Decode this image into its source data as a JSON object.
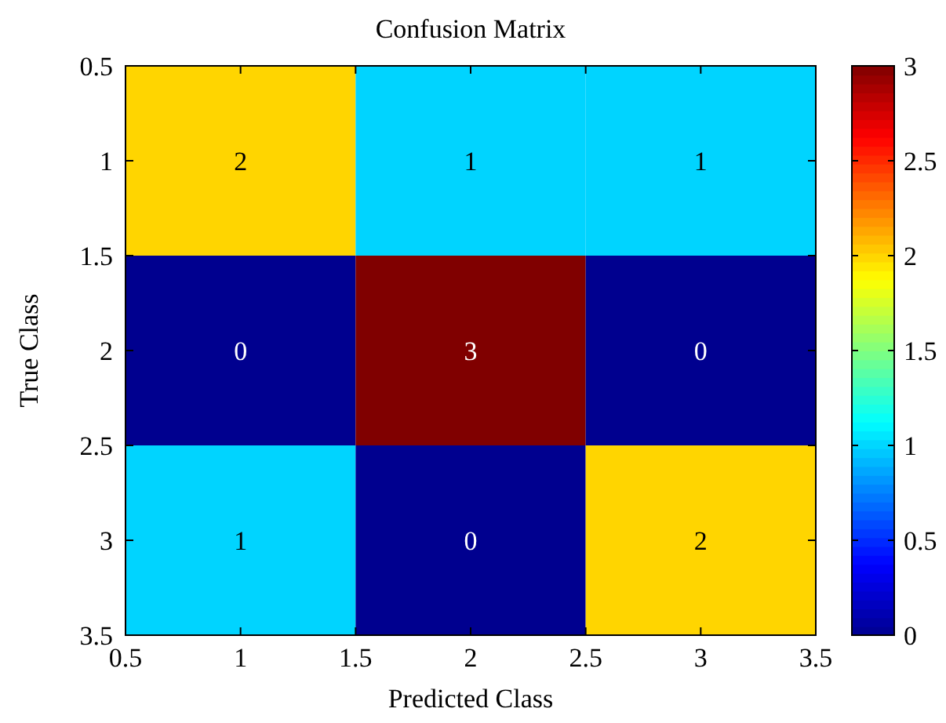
{
  "chart_data": {
    "type": "heatmap",
    "title": "Confusion Matrix",
    "xlabel": "Predicted Class",
    "ylabel": "True Class",
    "x": [
      1,
      2,
      3
    ],
    "y": [
      1,
      2,
      3
    ],
    "cells": [
      [
        2,
        1,
        1
      ],
      [
        0,
        3,
        0
      ],
      [
        1,
        0,
        2
      ]
    ],
    "data_labels": true,
    "xlim": [
      0.5,
      3.5
    ],
    "xticks": [
      0.5,
      1,
      1.5,
      2,
      2.5,
      3,
      3.5
    ],
    "ylim": [
      3.5,
      0.5
    ],
    "yticks": [
      0.5,
      1,
      1.5,
      2,
      2.5,
      3,
      3.5
    ],
    "clim": [
      0,
      3
    ],
    "cticks": [
      0,
      0.5,
      1,
      1.5,
      2,
      2.5,
      3
    ]
  }
}
